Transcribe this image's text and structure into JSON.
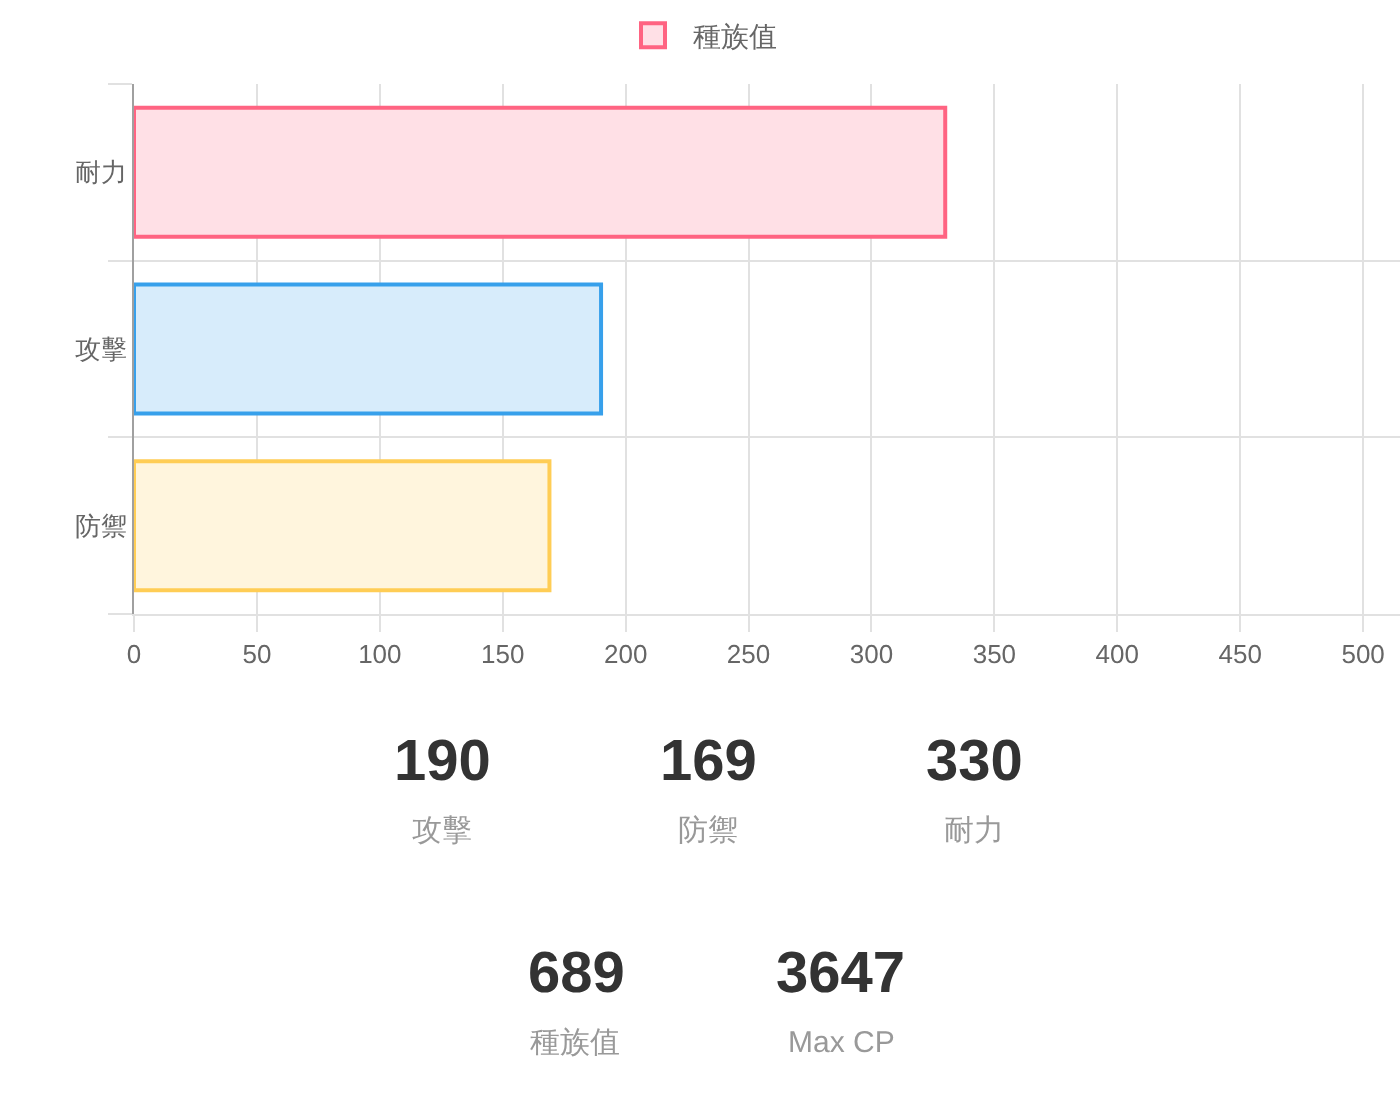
{
  "chart_data": [
    {
      "type": "bar",
      "orientation": "horizontal",
      "categories": [
        "耐力",
        "攻擊",
        "防禦"
      ],
      "series": [
        {
          "name": "種族值",
          "values": [
            330,
            190,
            169
          ],
          "colors": [
            "#ffe0e6",
            "#d7ecfb",
            "#fff5dd"
          ]
        }
      ],
      "xlim": [
        0,
        515
      ],
      "xticks": [
        0,
        50,
        100,
        150,
        200,
        250,
        300,
        350,
        400,
        450,
        500
      ],
      "grid": true,
      "legend": "top"
    },
    {
      "type": "other",
      "categories": [
        "攻擊",
        "防禦",
        "耐力",
        "種族值",
        "Max CP"
      ],
      "values": [
        190,
        169,
        330,
        689,
        3647
      ],
      "data_labels": true
    }
  ]
}
